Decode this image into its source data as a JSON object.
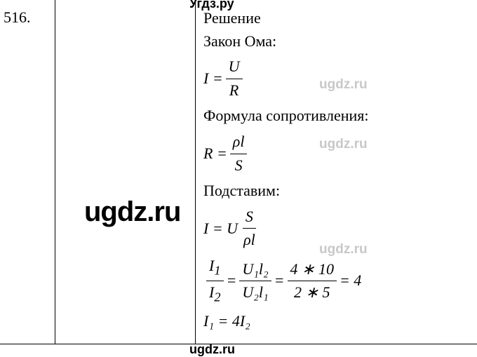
{
  "problem_number": "516.",
  "watermarks": {
    "top": "Угдз.ру",
    "bottom": "ugdz.ru",
    "center": "ugdz.ru",
    "gray": "ugdz.ru"
  },
  "solution": {
    "heading": "Решение",
    "ohm_law_label": "Закон Ома:",
    "ohm_law": {
      "lhs": "I = ",
      "num": "U",
      "den": "R"
    },
    "resistance_label": "Формула сопротивления:",
    "resistance": {
      "lhs": "R = ",
      "num": "ρl",
      "den": "S"
    },
    "substitute_label": "Подставим:",
    "substitute": {
      "lhs": "I = U ",
      "num": "S",
      "den": "ρl"
    },
    "ratio": {
      "lhs_num": "I",
      "lhs_sub1": "1",
      "lhs_den": "I",
      "lhs_sub2": "2",
      "mid_num": "U₁l₂",
      "mid_den": "U₂l₁",
      "calc_num": "4 ∗ 10",
      "calc_den": "2 ∗ 5",
      "result": " = 4"
    },
    "final": "I₁ = 4I₂"
  },
  "colors": {
    "text": "#000000",
    "bg": "#ffffff",
    "watermark_gray": "#c8c8c8"
  }
}
